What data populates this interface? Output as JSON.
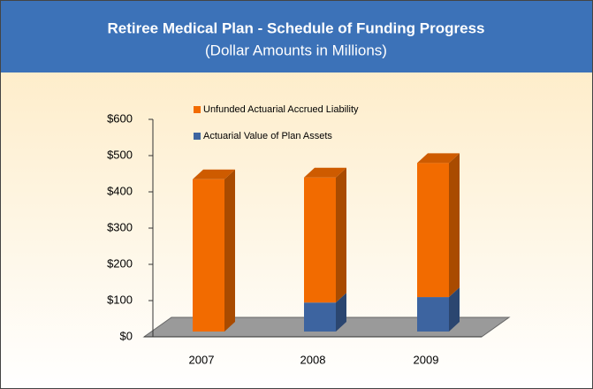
{
  "chart_data": {
    "type": "bar",
    "stacked": true,
    "title": "Retiree Medical Plan - Schedule of Funding Progress",
    "subtitle": "(Dollar Amounts in Millions)",
    "categories": [
      "2007",
      "2008",
      "2009"
    ],
    "series": [
      {
        "name": "Actuarial Value of Plan Assets",
        "color": "#3d64a0",
        "values": [
          0,
          80,
          95
        ]
      },
      {
        "name": "Unfunded Actuarial Accrued Liability",
        "color": "#f26b00",
        "values": [
          420,
          345,
          370
        ]
      }
    ],
    "ylim": [
      0,
      600
    ],
    "yticks": [
      {
        "value": 0,
        "label": "$0"
      },
      {
        "value": 100,
        "label": "$100"
      },
      {
        "value": 200,
        "label": "$200"
      },
      {
        "value": 300,
        "label": "$300"
      },
      {
        "value": 400,
        "label": "$400"
      },
      {
        "value": 500,
        "label": "$500"
      },
      {
        "value": 600,
        "label": "$600"
      }
    ]
  }
}
